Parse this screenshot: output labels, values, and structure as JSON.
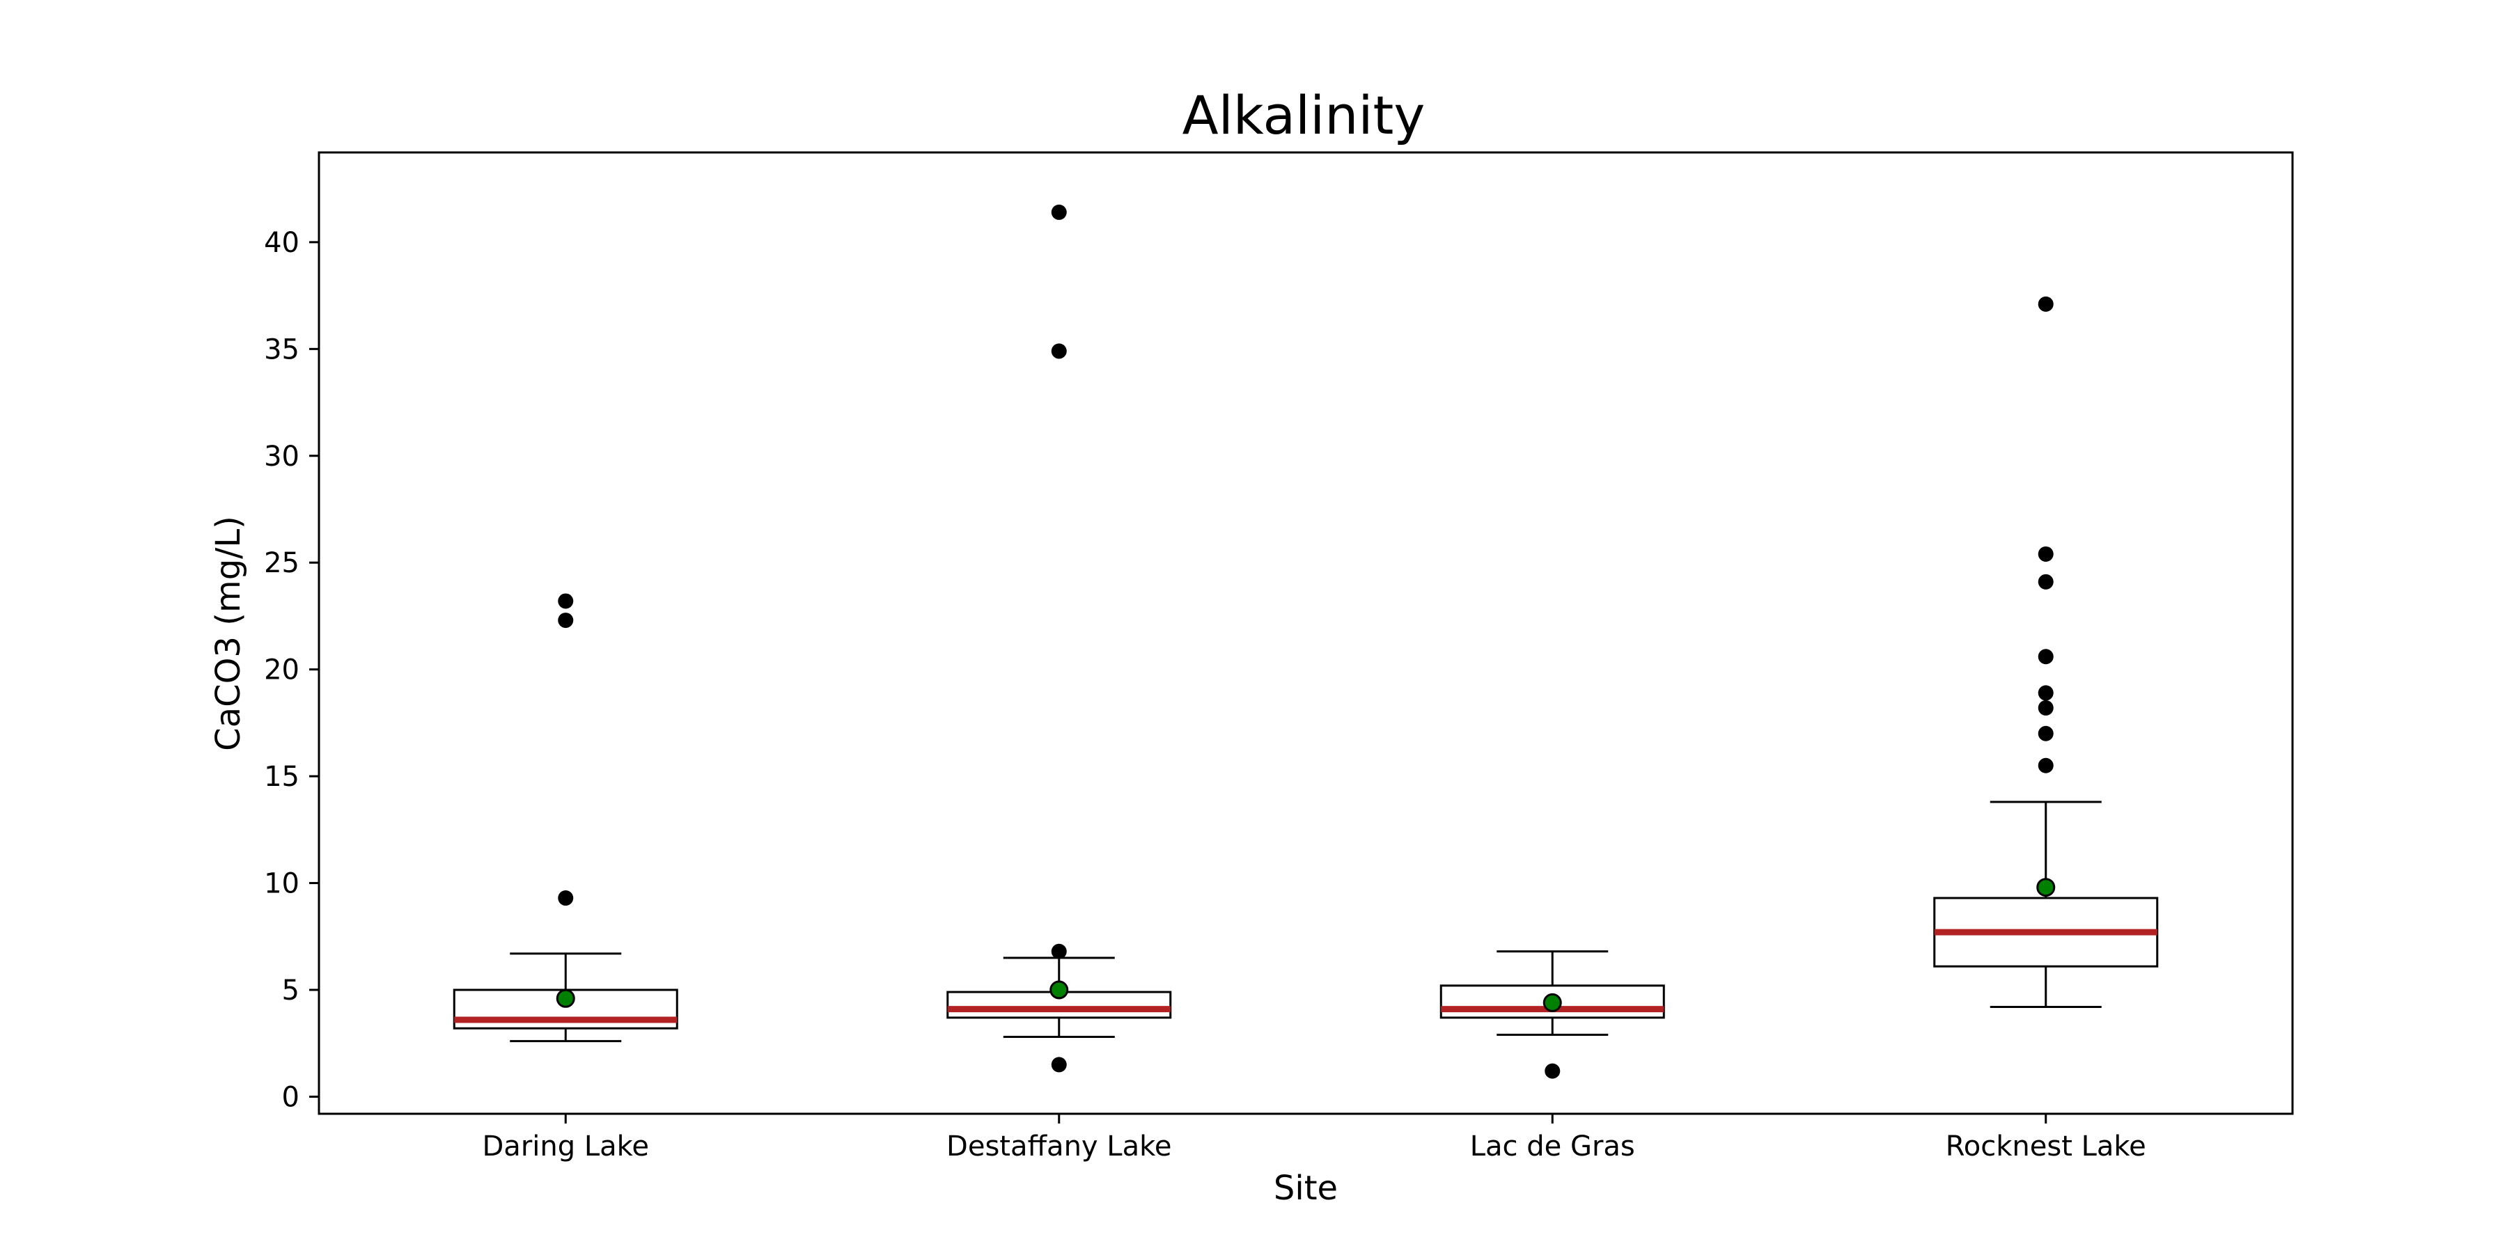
{
  "chart_data": {
    "type": "box",
    "title": "Alkalinity",
    "xlabel": "Site",
    "ylabel": "CaCO3 (mg/L)",
    "ylim": [
      -0.8,
      44.2
    ],
    "yticks": [
      0,
      5,
      10,
      15,
      20,
      25,
      30,
      35,
      40
    ],
    "grid": false,
    "categories": [
      "Daring Lake",
      "Destaffany Lake",
      "Lac de Gras",
      "Rocknest Lake"
    ],
    "boxes": [
      {
        "category": "Daring Lake",
        "whisker_low": 2.6,
        "q1": 3.2,
        "median": 3.6,
        "q3": 5.0,
        "whisker_high": 6.7,
        "mean": 4.6,
        "outliers": [
          23.2,
          22.3,
          9.3
        ]
      },
      {
        "category": "Destaffany Lake",
        "whisker_low": 2.8,
        "q1": 3.7,
        "median": 4.1,
        "q3": 4.9,
        "whisker_high": 6.5,
        "mean": 5.0,
        "outliers": [
          41.4,
          34.9,
          6.8,
          1.5
        ]
      },
      {
        "category": "Lac de Gras",
        "whisker_low": 2.9,
        "q1": 3.7,
        "median": 4.1,
        "q3": 5.2,
        "whisker_high": 6.8,
        "mean": 4.4,
        "outliers": [
          1.2
        ]
      },
      {
        "category": "Rocknest Lake",
        "whisker_low": 4.2,
        "q1": 6.1,
        "median": 7.7,
        "q3": 9.3,
        "whisker_high": 13.8,
        "mean": 9.8,
        "outliers": [
          37.1,
          25.4,
          24.1,
          20.6,
          18.9,
          18.2,
          17.0,
          15.5
        ]
      }
    ],
    "colors": {
      "median": "#b22222",
      "mean": "#008000",
      "outlier": "#000000",
      "box": "#000000"
    }
  }
}
